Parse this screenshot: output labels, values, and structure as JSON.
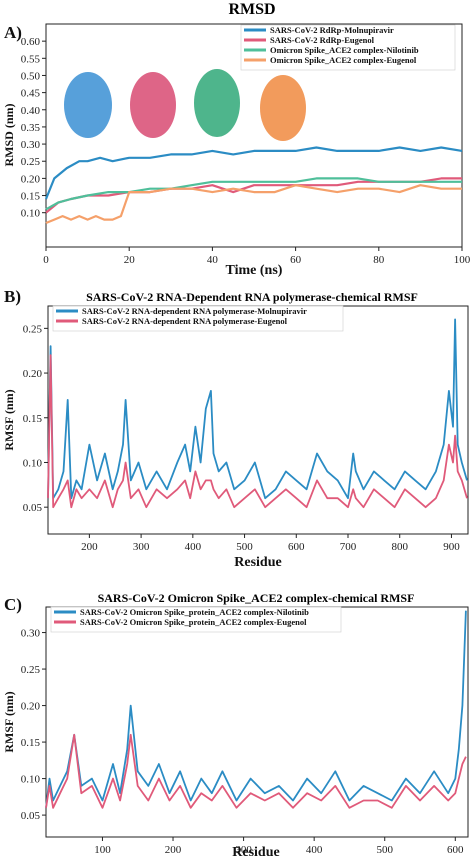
{
  "chart_data": [
    {
      "type": "line",
      "panel_label": "A)",
      "title": "RMSD",
      "xlabel": "Time (ns)",
      "ylabel": "RMSD (nm)",
      "xlim": [
        0,
        100
      ],
      "ylim": [
        0,
        0.65
      ],
      "xticks": [
        "0",
        "20",
        "40",
        "60",
        "80",
        "100"
      ],
      "yticks": [
        "0.10",
        "0.15",
        "0.20",
        "0.25",
        "0.30",
        "0.35",
        "0.40",
        "0.45",
        "0.50",
        "0.55",
        "0.60"
      ],
      "ytick_values": [
        0.1,
        0.15,
        0.2,
        0.25,
        0.3,
        0.35,
        0.4,
        0.45,
        0.5,
        0.55,
        0.6
      ],
      "legend_position": "top-right",
      "series": [
        {
          "name": "SARS-CoV-2 RdRp-Molnupiravir",
          "color": "#2b8cc4",
          "x": [
            0,
            2,
            5,
            8,
            10,
            13,
            16,
            20,
            25,
            30,
            35,
            40,
            45,
            50,
            55,
            60,
            65,
            70,
            75,
            80,
            85,
            90,
            95,
            100
          ],
          "y": [
            0.14,
            0.2,
            0.23,
            0.25,
            0.25,
            0.26,
            0.25,
            0.26,
            0.26,
            0.27,
            0.27,
            0.28,
            0.27,
            0.28,
            0.28,
            0.28,
            0.29,
            0.28,
            0.28,
            0.28,
            0.29,
            0.28,
            0.29,
            0.28
          ]
        },
        {
          "name": "SARS-CoV-2 RdRp-Eugenol",
          "color": "#e05a7a",
          "x": [
            0,
            3,
            6,
            10,
            15,
            20,
            25,
            30,
            35,
            40,
            45,
            50,
            55,
            60,
            65,
            70,
            75,
            80,
            85,
            90,
            95,
            100
          ],
          "y": [
            0.1,
            0.13,
            0.14,
            0.15,
            0.15,
            0.16,
            0.16,
            0.17,
            0.17,
            0.18,
            0.16,
            0.18,
            0.18,
            0.18,
            0.18,
            0.18,
            0.19,
            0.19,
            0.19,
            0.19,
            0.2,
            0.2
          ]
        },
        {
          "name": "Omicron Spike_ACE2 complex-Nilotinib",
          "color": "#4fbf9a",
          "x": [
            0,
            3,
            6,
            10,
            15,
            20,
            25,
            30,
            35,
            40,
            45,
            50,
            55,
            60,
            65,
            70,
            75,
            80,
            85,
            90,
            95,
            100
          ],
          "y": [
            0.11,
            0.13,
            0.14,
            0.15,
            0.16,
            0.16,
            0.17,
            0.17,
            0.18,
            0.19,
            0.19,
            0.19,
            0.19,
            0.19,
            0.2,
            0.2,
            0.2,
            0.19,
            0.19,
            0.19,
            0.19,
            0.19
          ]
        },
        {
          "name": "Omicron Spike_ACE2 complex-Eugenol",
          "color": "#f5a06a",
          "x": [
            0,
            2,
            4,
            6,
            8,
            10,
            12,
            14,
            16,
            18,
            20,
            25,
            30,
            35,
            40,
            45,
            50,
            55,
            60,
            65,
            70,
            75,
            80,
            85,
            90,
            95,
            100
          ],
          "y": [
            0.07,
            0.08,
            0.09,
            0.08,
            0.09,
            0.08,
            0.09,
            0.08,
            0.08,
            0.09,
            0.16,
            0.16,
            0.17,
            0.17,
            0.16,
            0.17,
            0.16,
            0.16,
            0.18,
            0.17,
            0.16,
            0.17,
            0.17,
            0.16,
            0.18,
            0.17,
            0.17
          ]
        }
      ]
    },
    {
      "type": "line",
      "panel_label": "B)",
      "title": "SARS-CoV-2 RNA-Dependent RNA polymerase-chemical RMSF",
      "xlabel": "Residue",
      "ylabel": "RMSF (nm)",
      "xlim": [
        120,
        932
      ],
      "ylim": [
        0.02,
        0.275
      ],
      "xticks": [
        "200",
        "300",
        "400",
        "500",
        "600",
        "700",
        "800",
        "900"
      ],
      "xtick_values": [
        200,
        300,
        400,
        500,
        600,
        700,
        800,
        900
      ],
      "yticks": [
        "0.05",
        "0.10",
        "0.15",
        "0.20",
        "0.25"
      ],
      "ytick_values": [
        0.05,
        0.1,
        0.15,
        0.2,
        0.25
      ],
      "legend_position": "top-left",
      "series": [
        {
          "name": "SARS-CoV-2 RNA-dependent RNA polymerase-Molnupiravir",
          "color": "#2b8cc4",
          "x": [
            120,
            125,
            130,
            140,
            150,
            158,
            165,
            175,
            185,
            200,
            215,
            230,
            245,
            255,
            265,
            270,
            280,
            295,
            310,
            330,
            350,
            370,
            385,
            395,
            405,
            415,
            425,
            435,
            440,
            450,
            465,
            480,
            500,
            520,
            540,
            560,
            580,
            600,
            620,
            640,
            660,
            680,
            700,
            710,
            715,
            730,
            750,
            770,
            790,
            810,
            830,
            850,
            870,
            885,
            895,
            903,
            907,
            912,
            920,
            930
          ],
          "y": [
            0.06,
            0.23,
            0.06,
            0.07,
            0.09,
            0.17,
            0.06,
            0.08,
            0.07,
            0.12,
            0.08,
            0.11,
            0.07,
            0.09,
            0.12,
            0.17,
            0.08,
            0.1,
            0.07,
            0.09,
            0.07,
            0.1,
            0.12,
            0.09,
            0.14,
            0.1,
            0.16,
            0.18,
            0.11,
            0.09,
            0.1,
            0.07,
            0.08,
            0.1,
            0.06,
            0.07,
            0.09,
            0.08,
            0.07,
            0.11,
            0.09,
            0.08,
            0.06,
            0.11,
            0.09,
            0.07,
            0.09,
            0.08,
            0.07,
            0.09,
            0.08,
            0.07,
            0.09,
            0.12,
            0.18,
            0.14,
            0.26,
            0.12,
            0.1,
            0.08
          ]
        },
        {
          "name": "SARS-CoV-2 RNA-dependent RNA polymerase-Eugenol",
          "color": "#e05a7a",
          "x": [
            120,
            125,
            130,
            140,
            150,
            158,
            165,
            175,
            185,
            200,
            215,
            230,
            245,
            255,
            265,
            270,
            280,
            295,
            310,
            330,
            350,
            370,
            385,
            395,
            405,
            415,
            425,
            435,
            440,
            450,
            465,
            480,
            500,
            520,
            540,
            560,
            580,
            600,
            620,
            640,
            660,
            680,
            700,
            710,
            715,
            730,
            750,
            770,
            790,
            810,
            830,
            850,
            870,
            885,
            895,
            903,
            907,
            912,
            920,
            930
          ],
          "y": [
            0.06,
            0.22,
            0.05,
            0.06,
            0.07,
            0.08,
            0.05,
            0.07,
            0.06,
            0.07,
            0.06,
            0.08,
            0.05,
            0.07,
            0.08,
            0.1,
            0.06,
            0.07,
            0.05,
            0.07,
            0.06,
            0.07,
            0.08,
            0.06,
            0.09,
            0.07,
            0.08,
            0.08,
            0.07,
            0.06,
            0.07,
            0.05,
            0.06,
            0.07,
            0.05,
            0.06,
            0.07,
            0.06,
            0.05,
            0.08,
            0.06,
            0.06,
            0.05,
            0.07,
            0.06,
            0.05,
            0.07,
            0.06,
            0.05,
            0.07,
            0.06,
            0.05,
            0.06,
            0.08,
            0.12,
            0.1,
            0.13,
            0.09,
            0.08,
            0.06
          ]
        }
      ]
    },
    {
      "type": "line",
      "panel_label": "C)",
      "title": "SARS-CoV-2 Omicron Spike_ACE2 complex-chemical RMSF",
      "xlabel": "Residue",
      "ylabel": "RMSF (nm)",
      "xlim": [
        20,
        618
      ],
      "ylim": [
        0.02,
        0.335
      ],
      "xticks": [
        "100",
        "200",
        "300",
        "400",
        "500",
        "600"
      ],
      "xtick_values": [
        100,
        200,
        300,
        400,
        500,
        600
      ],
      "yticks": [
        "0.05",
        "0.10",
        "0.15",
        "0.20",
        "0.25",
        "0.30"
      ],
      "ytick_values": [
        0.05,
        0.1,
        0.15,
        0.2,
        0.25,
        0.3
      ],
      "legend_position": "top-left",
      "series": [
        {
          "name": "SARS-CoV-2 Omicron Spike_protein_ACE2 complex-Nilotinib",
          "color": "#2b8cc4",
          "x": [
            20,
            25,
            30,
            40,
            50,
            60,
            70,
            85,
            100,
            115,
            125,
            135,
            140,
            150,
            165,
            180,
            195,
            210,
            225,
            240,
            255,
            270,
            290,
            310,
            330,
            350,
            370,
            390,
            410,
            430,
            450,
            470,
            490,
            510,
            530,
            550,
            570,
            590,
            600,
            605,
            610,
            615
          ],
          "y": [
            0.06,
            0.1,
            0.07,
            0.09,
            0.11,
            0.16,
            0.09,
            0.1,
            0.07,
            0.12,
            0.08,
            0.14,
            0.2,
            0.11,
            0.09,
            0.12,
            0.08,
            0.11,
            0.07,
            0.1,
            0.08,
            0.11,
            0.07,
            0.1,
            0.08,
            0.09,
            0.07,
            0.1,
            0.08,
            0.11,
            0.07,
            0.09,
            0.08,
            0.07,
            0.1,
            0.08,
            0.11,
            0.08,
            0.1,
            0.14,
            0.2,
            0.33
          ]
        },
        {
          "name": "SARS-CoV-2 Omicron Spike_protein_ACE2 complex-Eugenol",
          "color": "#e05a7a",
          "x": [
            20,
            25,
            30,
            40,
            50,
            60,
            70,
            85,
            100,
            115,
            125,
            135,
            140,
            150,
            165,
            180,
            195,
            210,
            225,
            240,
            255,
            270,
            290,
            310,
            330,
            350,
            370,
            390,
            410,
            430,
            450,
            470,
            490,
            510,
            530,
            550,
            570,
            590,
            600,
            605,
            610,
            615
          ],
          "y": [
            0.06,
            0.09,
            0.06,
            0.08,
            0.1,
            0.16,
            0.08,
            0.09,
            0.06,
            0.1,
            0.07,
            0.12,
            0.16,
            0.09,
            0.07,
            0.1,
            0.07,
            0.09,
            0.06,
            0.08,
            0.07,
            0.09,
            0.06,
            0.08,
            0.07,
            0.08,
            0.06,
            0.08,
            0.07,
            0.09,
            0.06,
            0.07,
            0.07,
            0.06,
            0.09,
            0.07,
            0.09,
            0.07,
            0.08,
            0.1,
            0.12,
            0.13
          ]
        }
      ]
    }
  ]
}
